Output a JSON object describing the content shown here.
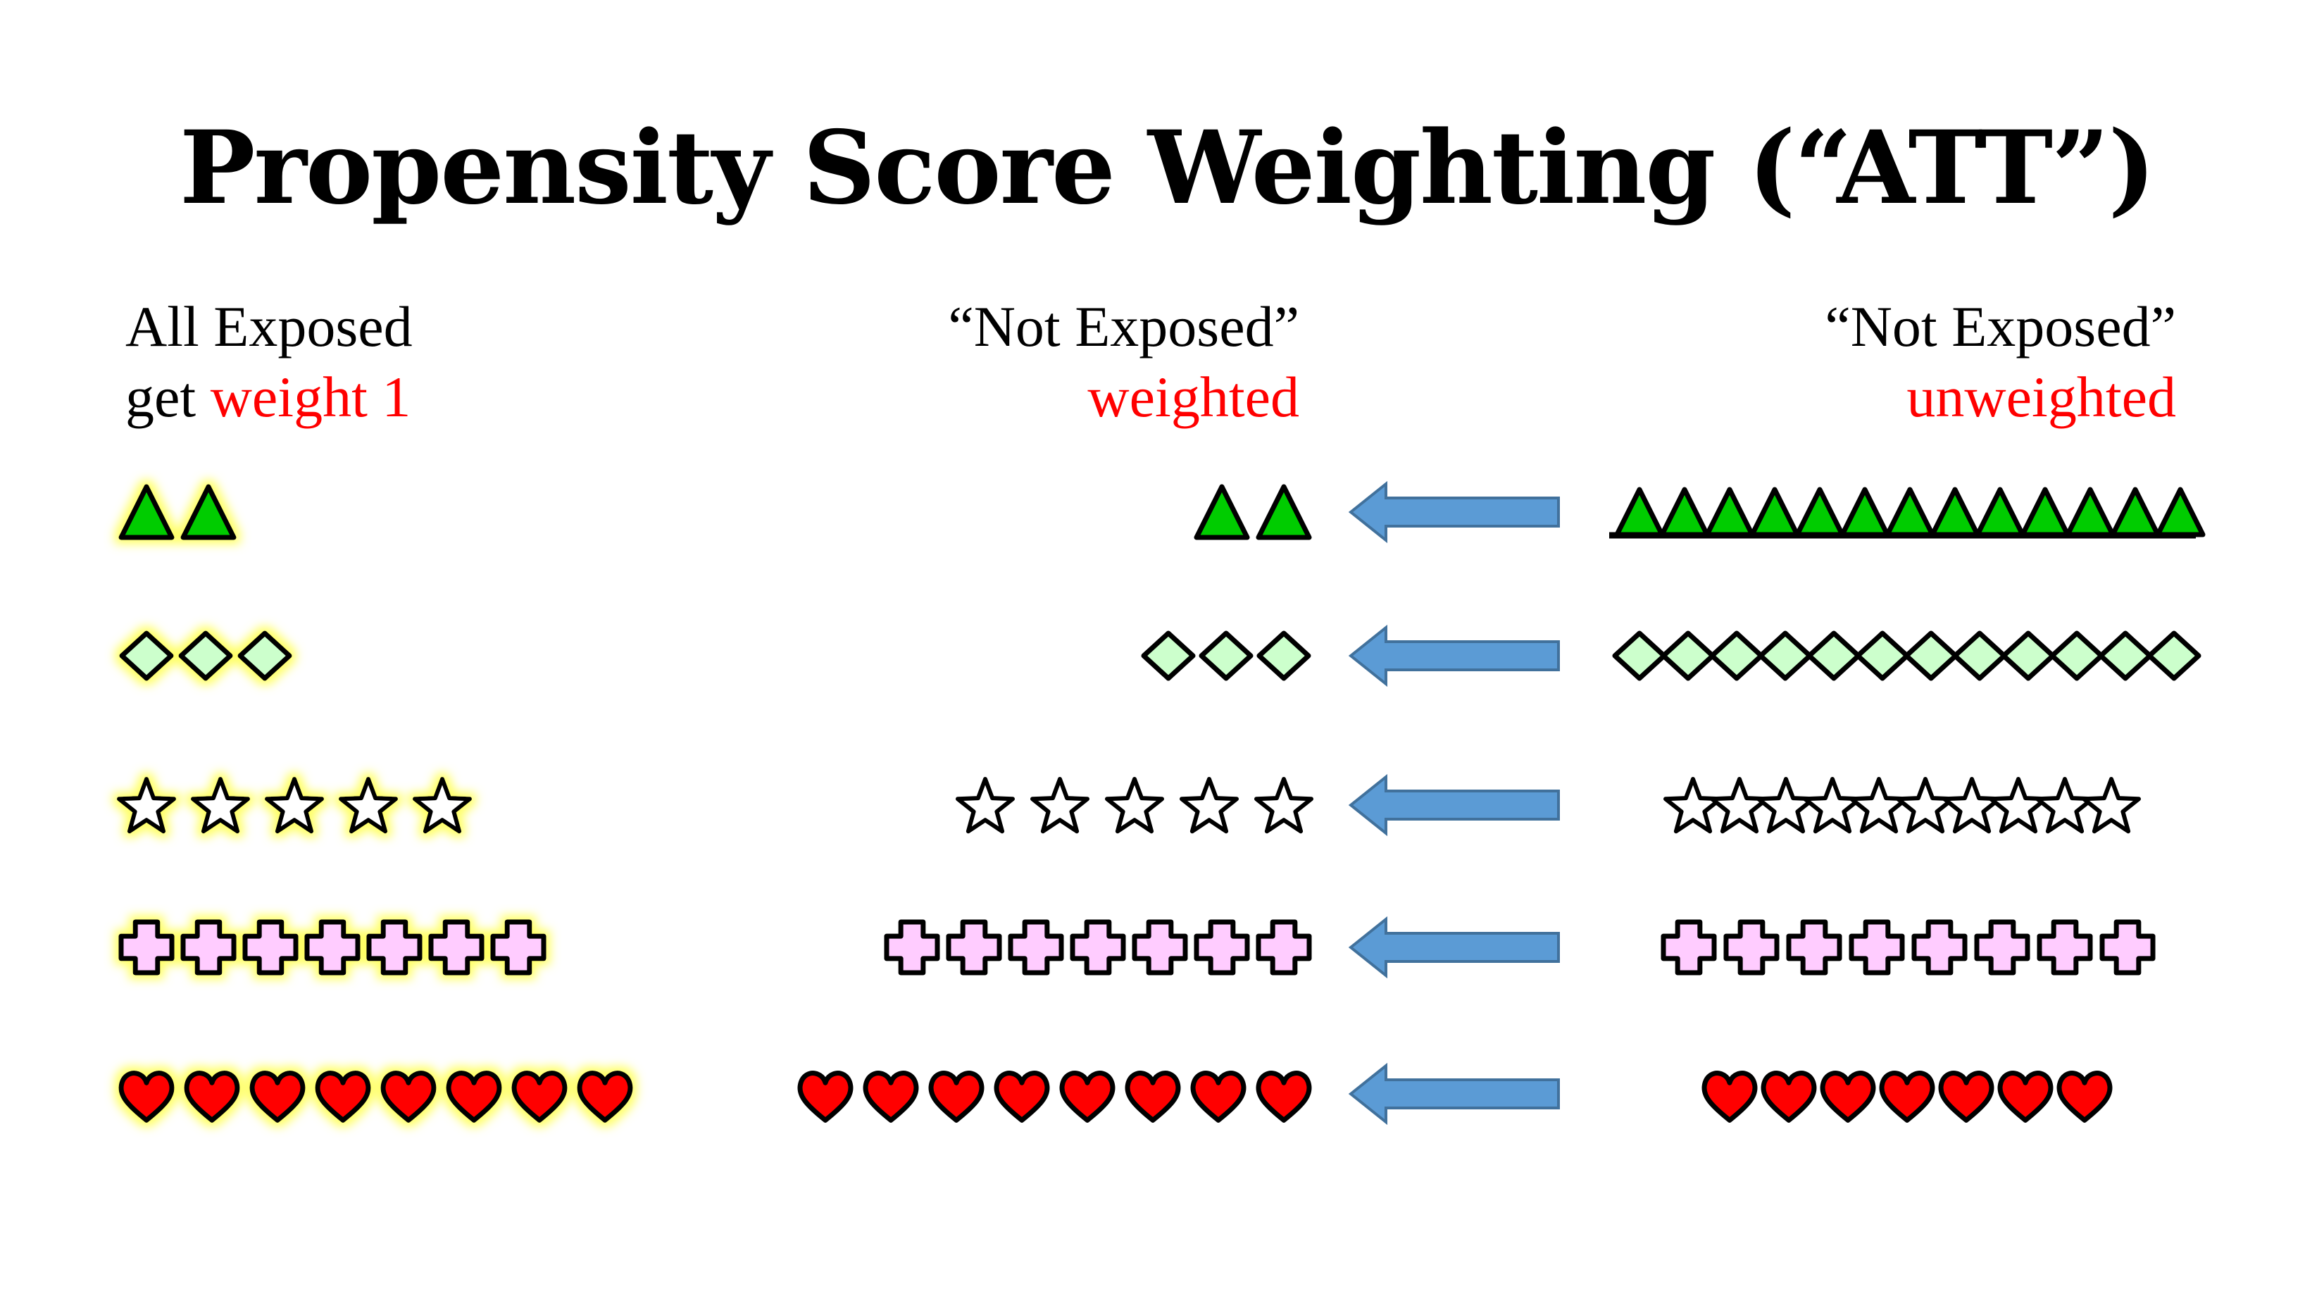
{
  "title": "Propensity Score Weighting (“ATT”)",
  "columns": {
    "exposed": {
      "line1": "All Exposed",
      "line2_prefix": "get ",
      "line2_highlight": "weight 1"
    },
    "weighted": {
      "line1": "“Not Exposed”",
      "line2": "weighted"
    },
    "unweighted": {
      "line1": "“Not Exposed”",
      "line2": "unweighted"
    }
  },
  "colors": {
    "text": "#000000",
    "highlight_text": "#ff0000",
    "arrow": "#5b9bd5",
    "arrow_outline": "#41719c",
    "glow": "#ffff66"
  },
  "rows": [
    {
      "shape": "triangle-icon",
      "fill": "#00cc00",
      "exposed": 2,
      "weighted": 2,
      "unweighted": 13
    },
    {
      "shape": "diamond-icon",
      "fill": "#ccffcc",
      "exposed": 3,
      "weighted": 3,
      "unweighted": 12
    },
    {
      "shape": "star-icon",
      "fill": "#ffffff",
      "exposed": 5,
      "weighted": 5,
      "unweighted": 10
    },
    {
      "shape": "cross-icon",
      "fill": "#ffccff",
      "exposed": 7,
      "weighted": 7,
      "unweighted": 8
    },
    {
      "shape": "heart-icon",
      "fill": "#ff0000",
      "exposed": 8,
      "weighted": 8,
      "unweighted": 7
    }
  ]
}
